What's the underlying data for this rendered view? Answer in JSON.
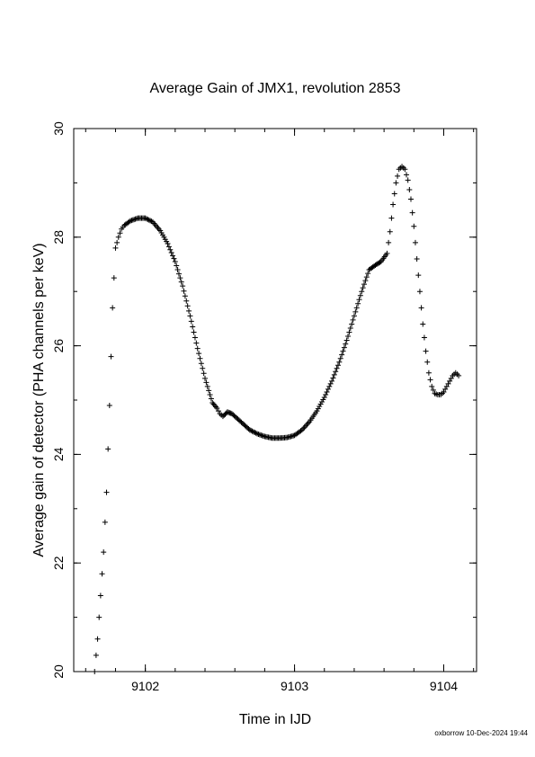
{
  "chart_data": {
    "type": "scatter",
    "title": "Average Gain of JMX1, revolution 2853",
    "xlabel": "Time in IJD",
    "ylabel": "Average gain of detector (PHA channels per keV)",
    "xlim": [
      9101.52,
      9104.22
    ],
    "ylim": [
      20,
      30
    ],
    "xticks": [
      9102,
      9103,
      9104
    ],
    "xtick_labels": [
      "9102",
      "9103",
      "9104"
    ],
    "yticks": [
      20,
      22,
      24,
      26,
      28,
      30
    ],
    "ytick_labels": [
      "20",
      "22",
      "24",
      "26",
      "28",
      "30"
    ],
    "x_minor_step": 0.2,
    "y_minor_step": 1,
    "marker": "+",
    "marker_color": "#000000",
    "grid": false,
    "legend": "none",
    "series": [
      {
        "x": [
          9101.66,
          9101.68,
          9101.7,
          9101.72,
          9101.74,
          9101.76,
          9101.78,
          9101.8,
          9101.82,
          9101.84,
          9101.86,
          9101.9,
          9101.95,
          9102.0,
          9102.05,
          9102.1,
          9102.15,
          9102.2,
          9102.25,
          9102.3,
          9102.35,
          9102.4,
          9102.45,
          9102.48,
          9102.5,
          9102.52,
          9102.55,
          9102.58,
          9102.62,
          9102.66,
          9102.7,
          9102.75,
          9102.8,
          9102.85,
          9102.9,
          9102.95,
          9103.0,
          9103.05,
          9103.1,
          9103.15,
          9103.2,
          9103.25,
          9103.3,
          9103.35,
          9103.4,
          9103.45,
          9103.5,
          9103.55,
          9103.58,
          9103.62,
          9103.64,
          9103.66,
          9103.68,
          9103.7,
          9103.72,
          9103.74,
          9103.76,
          9103.78,
          9103.8,
          9103.82,
          9103.84,
          9103.86,
          9103.88,
          9103.9,
          9103.92,
          9103.94,
          9103.96,
          9103.98,
          9104.0,
          9104.02,
          9104.04,
          9104.06,
          9104.08,
          9104.1
        ],
        "y": [
          20.0,
          20.6,
          21.4,
          22.2,
          23.3,
          24.9,
          26.7,
          27.8,
          28.0,
          28.15,
          28.22,
          28.3,
          28.35,
          28.35,
          28.28,
          28.12,
          27.88,
          27.55,
          27.1,
          26.55,
          25.95,
          25.4,
          24.95,
          24.85,
          24.75,
          24.7,
          24.78,
          24.75,
          24.65,
          24.55,
          24.45,
          24.38,
          24.33,
          24.3,
          24.3,
          24.31,
          24.35,
          24.45,
          24.6,
          24.8,
          25.05,
          25.35,
          25.7,
          26.1,
          26.55,
          27.0,
          27.4,
          27.5,
          27.55,
          27.7,
          28.1,
          28.6,
          29.0,
          29.25,
          29.3,
          29.25,
          29.05,
          28.7,
          28.2,
          27.6,
          27.0,
          26.4,
          25.9,
          25.5,
          25.25,
          25.12,
          25.1,
          25.1,
          25.15,
          25.25,
          25.35,
          25.45,
          25.5,
          25.45
        ]
      }
    ]
  },
  "footer": {
    "credit": "oxborrow 10-Dec-2024 19:44"
  }
}
